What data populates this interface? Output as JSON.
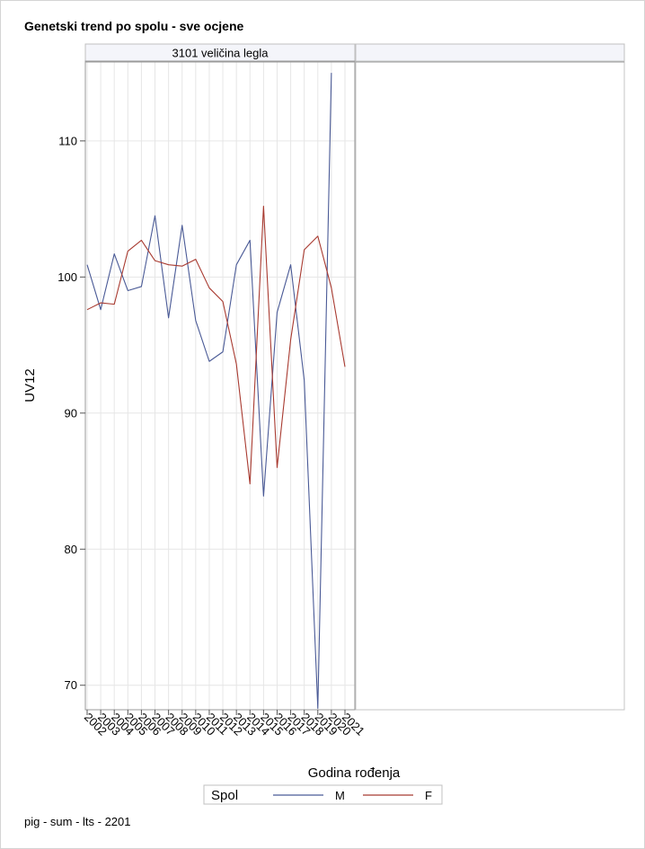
{
  "title": "Genetski trend po spolu - sve ocjene",
  "footnote": "pig - sum - lts - 2201",
  "chart_data": {
    "type": "line",
    "panel_title": "3101 veličina legla",
    "xlabel": "Godina rođenja",
    "ylabel": "UV12",
    "categories": [
      "2002",
      "2003",
      "2004",
      "2005",
      "2006",
      "2007",
      "2008",
      "2009",
      "2010",
      "2011",
      "2012",
      "2013",
      "2014",
      "2015",
      "2016",
      "2017",
      "2018",
      "2019",
      "2020",
      "2021"
    ],
    "ylim": [
      68.2,
      115.8
    ],
    "yticks": [
      70,
      80,
      90,
      100,
      110
    ],
    "grid": true,
    "legend": {
      "title": "Spol",
      "position": "bottom-center"
    },
    "series": [
      {
        "name": "M",
        "color": "#4a5a96",
        "values": [
          100.9,
          97.6,
          101.7,
          99.0,
          99.3,
          104.5,
          97.0,
          103.8,
          96.8,
          93.8,
          94.5,
          100.9,
          102.7,
          83.9,
          97.4,
          100.9,
          92.4,
          68.3,
          115.0,
          null
        ]
      },
      {
        "name": "F",
        "color": "#a83a30",
        "values": [
          97.6,
          98.1,
          98.0,
          101.9,
          102.7,
          101.2,
          100.9,
          100.8,
          101.3,
          99.2,
          98.2,
          93.6,
          84.8,
          105.2,
          86.0,
          95.4,
          102.0,
          103.0,
          99.2,
          93.4
        ]
      }
    ]
  }
}
